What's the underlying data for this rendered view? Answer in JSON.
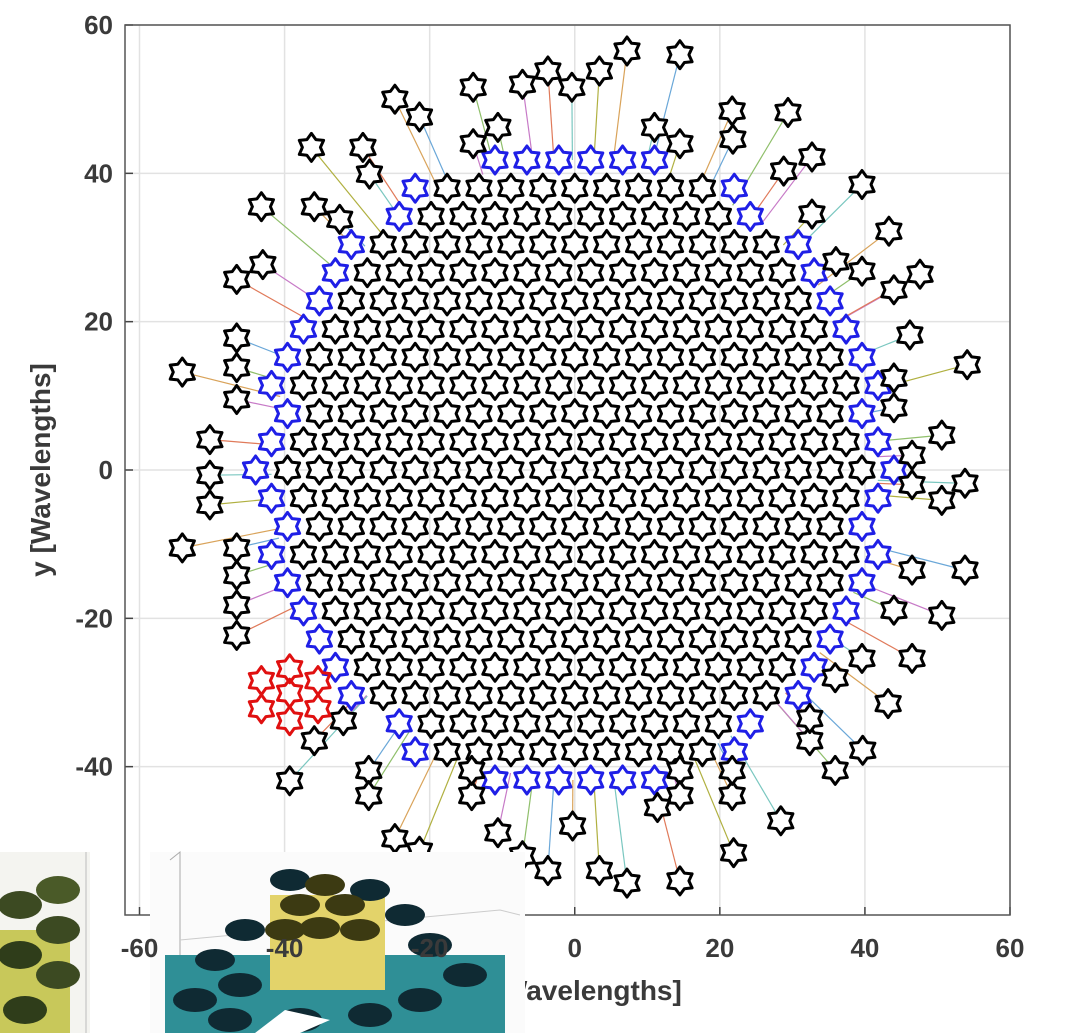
{
  "chart_data": {
    "type": "scatter",
    "xlabel": "x [Wavelengths]",
    "ylabel": "y [Wavelengths]",
    "xlim": [
      -62,
      60
    ],
    "ylim": [
      -60,
      60
    ],
    "xticks": [
      -60,
      -40,
      -20,
      0,
      20,
      40,
      60
    ],
    "yticks": [
      -40,
      -20,
      0,
      20,
      40,
      60
    ],
    "grid": true,
    "core": {
      "color": "#000000",
      "edge_color": "#1f1fe6",
      "rows": [
        {
          "y": 41.8,
          "x": [
            -11,
            -6.6,
            -2.2,
            2.2,
            6.6,
            11
          ]
        },
        {
          "y": 38,
          "x": [
            -22,
            -17.6,
            -13.2,
            -8.8,
            -4.4,
            0,
            4.4,
            8.8,
            13.2,
            17.6,
            22
          ]
        },
        {
          "y": 34.2,
          "x": [
            -24.2,
            -19.8,
            -15.4,
            -11,
            -6.6,
            -2.2,
            2.2,
            6.6,
            11,
            15.4,
            19.8,
            24.2
          ]
        },
        {
          "y": 30.4,
          "x": [
            -30.8,
            -26.4,
            -22,
            -17.6,
            -13.2,
            -8.8,
            -4.4,
            0,
            4.4,
            8.8,
            13.2,
            17.6,
            22,
            26.4,
            30.8
          ]
        },
        {
          "y": 26.6,
          "x": [
            -33,
            -28.6,
            -24.2,
            -19.8,
            -15.4,
            -11,
            -6.6,
            -2.2,
            2.2,
            6.6,
            11,
            15.4,
            19.8,
            24.2,
            28.6,
            33
          ]
        },
        {
          "y": 22.8,
          "x": [
            -35.2,
            -30.8,
            -26.4,
            -22,
            -17.6,
            -13.2,
            -8.8,
            -4.4,
            0,
            4.4,
            8.8,
            13.2,
            17.6,
            22,
            26.4,
            30.8,
            35.2
          ]
        },
        {
          "y": 19,
          "x": [
            -37.4,
            -33,
            -28.6,
            -24.2,
            -19.8,
            -15.4,
            -11,
            -6.6,
            -2.2,
            2.2,
            6.6,
            11,
            15.4,
            19.8,
            24.2,
            28.6,
            33,
            37.4
          ]
        },
        {
          "y": 15.2,
          "x": [
            -39.6,
            -35.2,
            -30.8,
            -26.4,
            -22,
            -17.6,
            -13.2,
            -8.8,
            -4.4,
            0,
            4.4,
            8.8,
            13.2,
            17.6,
            22,
            26.4,
            30.8,
            35.2,
            39.6
          ]
        },
        {
          "y": 11.4,
          "x": [
            -41.8,
            -37.4,
            -33,
            -28.6,
            -24.2,
            -19.8,
            -15.4,
            -11,
            -6.6,
            -2.2,
            2.2,
            6.6,
            11,
            15.4,
            19.8,
            24.2,
            28.6,
            33,
            37.4,
            41.8
          ]
        },
        {
          "y": 7.6,
          "x": [
            -39.6,
            -35.2,
            -30.8,
            -26.4,
            -22,
            -17.6,
            -13.2,
            -8.8,
            -4.4,
            0,
            4.4,
            8.8,
            13.2,
            17.6,
            22,
            26.4,
            30.8,
            35.2,
            39.6
          ]
        },
        {
          "y": 3.8,
          "x": [
            -41.8,
            -37.4,
            -33,
            -28.6,
            -24.2,
            -19.8,
            -15.4,
            -11,
            -6.6,
            -2.2,
            2.2,
            6.6,
            11,
            15.4,
            19.8,
            24.2,
            28.6,
            33,
            37.4,
            41.8
          ]
        },
        {
          "y": 0,
          "x": [
            -44,
            -39.6,
            -35.2,
            -30.8,
            -26.4,
            -22,
            -17.6,
            -13.2,
            -8.8,
            -4.4,
            0,
            4.4,
            8.8,
            13.2,
            17.6,
            22,
            26.4,
            30.8,
            35.2,
            39.6,
            44
          ]
        },
        {
          "y": -3.8,
          "x": [
            -41.8,
            -37.4,
            -33,
            -28.6,
            -24.2,
            -19.8,
            -15.4,
            -11,
            -6.6,
            -2.2,
            2.2,
            6.6,
            11,
            15.4,
            19.8,
            24.2,
            28.6,
            33,
            37.4,
            41.8
          ]
        },
        {
          "y": -7.6,
          "x": [
            -39.6,
            -35.2,
            -30.8,
            -26.4,
            -22,
            -17.6,
            -13.2,
            -8.8,
            -4.4,
            0,
            4.4,
            8.8,
            13.2,
            17.6,
            22,
            26.4,
            30.8,
            35.2,
            39.6
          ]
        },
        {
          "y": -11.4,
          "x": [
            -41.8,
            -37.4,
            -33,
            -28.6,
            -24.2,
            -19.8,
            -15.4,
            -11,
            -6.6,
            -2.2,
            2.2,
            6.6,
            11,
            15.4,
            19.8,
            24.2,
            28.6,
            33,
            37.4,
            41.8
          ]
        },
        {
          "y": -15.2,
          "x": [
            -39.6,
            -35.2,
            -30.8,
            -26.4,
            -22,
            -17.6,
            -13.2,
            -8.8,
            -4.4,
            0,
            4.4,
            8.8,
            13.2,
            17.6,
            22,
            26.4,
            30.8,
            35.2,
            39.6
          ]
        },
        {
          "y": -19,
          "x": [
            -37.4,
            -33,
            -28.6,
            -24.2,
            -19.8,
            -15.4,
            -11,
            -6.6,
            -2.2,
            2.2,
            6.6,
            11,
            15.4,
            19.8,
            24.2,
            28.6,
            33,
            37.4
          ]
        },
        {
          "y": -22.8,
          "x": [
            -35.2,
            -30.8,
            -26.4,
            -22,
            -17.6,
            -13.2,
            -8.8,
            -4.4,
            0,
            4.4,
            8.8,
            13.2,
            17.6,
            22,
            26.4,
            30.8,
            35.2
          ]
        },
        {
          "y": -26.6,
          "x": [
            -33,
            -28.6,
            -24.2,
            -19.8,
            -15.4,
            -11,
            -6.6,
            -2.2,
            2.2,
            6.6,
            11,
            15.4,
            19.8,
            24.2,
            28.6,
            33
          ]
        },
        {
          "y": -30.4,
          "x": [
            -30.8,
            -26.4,
            -22,
            -17.6,
            -13.2,
            -8.8,
            -4.4,
            0,
            4.4,
            8.8,
            13.2,
            17.6,
            22,
            26.4,
            30.8
          ]
        },
        {
          "y": -34.2,
          "x": [
            -24.2,
            -19.8,
            -15.4,
            -11,
            -6.6,
            -2.2,
            2.2,
            6.6,
            11,
            15.4,
            19.8,
            24.2
          ]
        },
        {
          "y": -38,
          "x": [
            -22,
            -17.6,
            -13.2,
            -8.8,
            -4.4,
            0,
            4.4,
            8.8,
            13.2,
            17.6,
            22
          ]
        },
        {
          "y": -41.8,
          "x": [
            -11,
            -6.6,
            -2.2,
            2.2,
            6.6,
            11
          ]
        }
      ]
    },
    "outer": {
      "color": "#000000",
      "x": [
        -24.8,
        -21.4,
        -14,
        -7.2,
        -3.7,
        -0.4,
        3.4,
        7.2,
        14.5,
        -10.6,
        -14,
        -29.2,
        -28.3,
        -36.3,
        -35.9,
        -32.4,
        -43.2,
        -43,
        -46.6,
        11,
        14.5,
        21.7,
        21.8,
        29.4,
        32.7,
        28.8,
        39.6,
        32.7,
        43.3,
        36,
        39.6,
        44,
        47.6,
        46.2,
        54.1,
        44,
        44,
        50.6,
        46.5,
        46.5,
        53.8,
        50.6,
        46.5,
        53.8,
        44,
        50.6,
        46.5,
        39.6,
        35.9,
        43.2,
        39.7,
        35.9,
        32.4,
        32.4,
        28.4,
        21.9,
        21.7,
        21.7,
        14.5,
        14.5,
        14.5,
        7.2,
        3.4,
        -0.3,
        -3.7,
        -7.2,
        -10.6,
        -14.2,
        -14.2,
        -21.4,
        -24.8,
        -28.4,
        -28.4,
        -31.9,
        -35.9,
        -39.3,
        11.4,
        -54.1,
        -46.6,
        -46.6,
        -46.6,
        -50.3,
        -50.3,
        -50.3,
        -54.1,
        -46.6,
        -46.6,
        -46.6,
        -46.6
      ],
      "y": [
        50,
        47.6,
        51.6,
        52,
        53.8,
        51.6,
        53.8,
        56.5,
        56,
        46.2,
        44,
        43.5,
        39.9,
        43.5,
        35.5,
        33.8,
        35.5,
        27.7,
        25.7,
        46.2,
        44,
        48.4,
        44.6,
        48.2,
        42.2,
        40.3,
        38.5,
        34.5,
        32.2,
        28.1,
        26.8,
        24.3,
        26.4,
        18.2,
        14.2,
        12.4,
        8.4,
        4.7,
        2,
        -2,
        -1.8,
        -4.1,
        -13.5,
        -13.5,
        -18.9,
        -19.6,
        -25.4,
        -25.4,
        -28,
        -31.5,
        -37.8,
        -40.5,
        -36.5,
        -33.5,
        -47.3,
        -51.6,
        -43.9,
        -40.5,
        -40.5,
        -43.9,
        -55.4,
        -55.7,
        -54,
        -48,
        -54,
        -52,
        -48.9,
        -43.9,
        -40.5,
        -51.4,
        -49.7,
        -40.5,
        -43.9,
        -33.8,
        -36.5,
        -41.9,
        -45.5,
        13.2,
        17.8,
        13.8,
        9.5,
        4.1,
        -0.7,
        -4.7,
        -10.5,
        -10.5,
        -14.2,
        -18.2,
        -22.3
      ]
    },
    "highlight": {
      "color": "#e01010",
      "x": [
        -43.2,
        -39.3,
        -35.4,
        -43.2,
        -39.3,
        -35.4,
        -39.3
      ],
      "y": [
        -28.4,
        -26.8,
        -28.4,
        -32.2,
        -33.8,
        -32.2,
        -30.1
      ]
    }
  }
}
